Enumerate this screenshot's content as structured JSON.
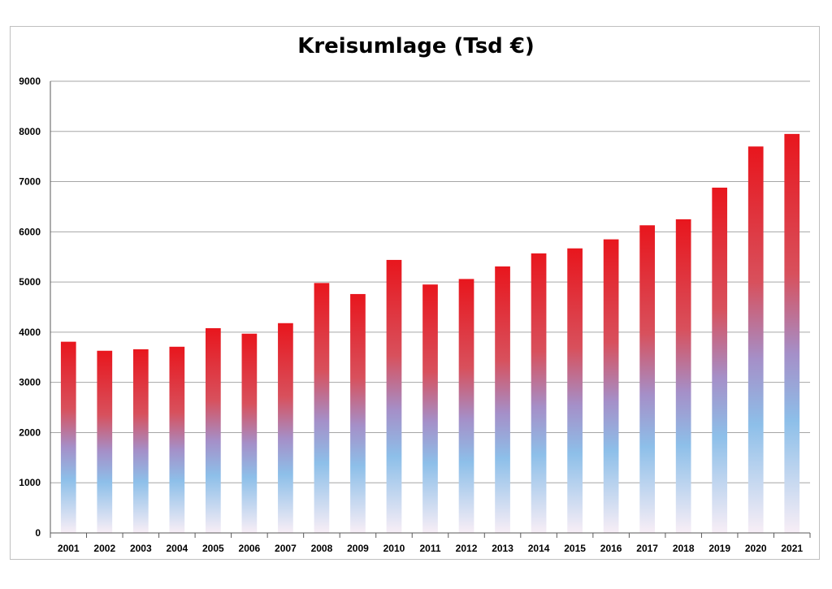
{
  "chart_data": {
    "type": "bar",
    "title": "Kreisumlage (Tsd €)",
    "xlabel": "",
    "ylabel": "",
    "categories": [
      "2001",
      "2002",
      "2003",
      "2004",
      "2005",
      "2006",
      "2007",
      "2008",
      "2009",
      "2010",
      "2011",
      "2012",
      "2013",
      "2014",
      "2015",
      "2016",
      "2017",
      "2018",
      "2019",
      "2020",
      "2021"
    ],
    "values": [
      3810,
      3630,
      3660,
      3710,
      4080,
      3970,
      4180,
      4980,
      4760,
      5440,
      4950,
      5060,
      5310,
      5570,
      5670,
      5850,
      6130,
      6250,
      6880,
      7700,
      7950
    ],
    "ylim": [
      0,
      9000
    ],
    "yticks": [
      "0",
      "1000",
      "2000",
      "3000",
      "4000",
      "5000",
      "6000",
      "7000",
      "8000",
      "9000"
    ],
    "grid": true,
    "legend": "none",
    "colors": {
      "bar_top": "#e8161d",
      "bar_mid_upper": "#d8505c",
      "bar_mid": "#a58fc8",
      "bar_lower": "#8dbfe9",
      "bar_bottom": "#f8eef6",
      "grid": "#a6a6a6",
      "axis": "#595959"
    }
  }
}
